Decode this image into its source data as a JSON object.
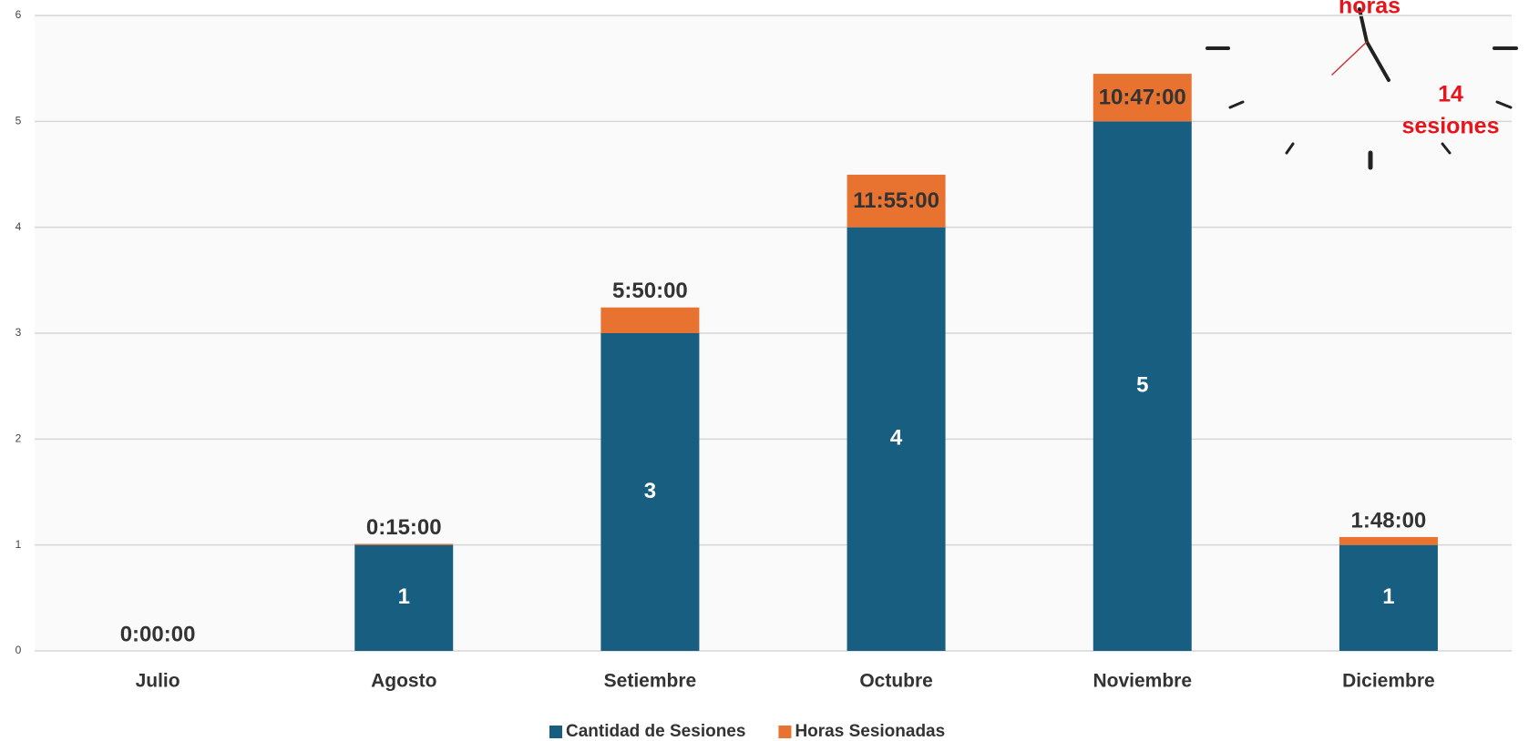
{
  "chart_data": {
    "type": "stacked-bar",
    "categories": [
      "Julio",
      "Agosto",
      "Setiembre",
      "Octubre",
      "Noviembre",
      "Diciembre"
    ],
    "series": [
      {
        "name": "Cantidad de Sesiones",
        "color": "#175e80",
        "values": [
          0,
          1,
          3,
          4,
          5,
          1
        ]
      },
      {
        "name": "Horas Sesionadas",
        "color": "#e87230",
        "values": [
          0,
          0.010417,
          0.243056,
          0.496528,
          0.449306,
          0.075
        ],
        "value_labels": [
          "0:00:00",
          "0:15:00",
          "5:50:00",
          "11:55:00",
          "10:47:00",
          "1:48:00"
        ]
      }
    ],
    "ylim": [
      0,
      6
    ],
    "yticks": [
      0,
      1,
      2,
      3,
      4,
      5,
      6
    ],
    "grid": true,
    "annotations": [
      "horas",
      "14 sesiones"
    ]
  }
}
